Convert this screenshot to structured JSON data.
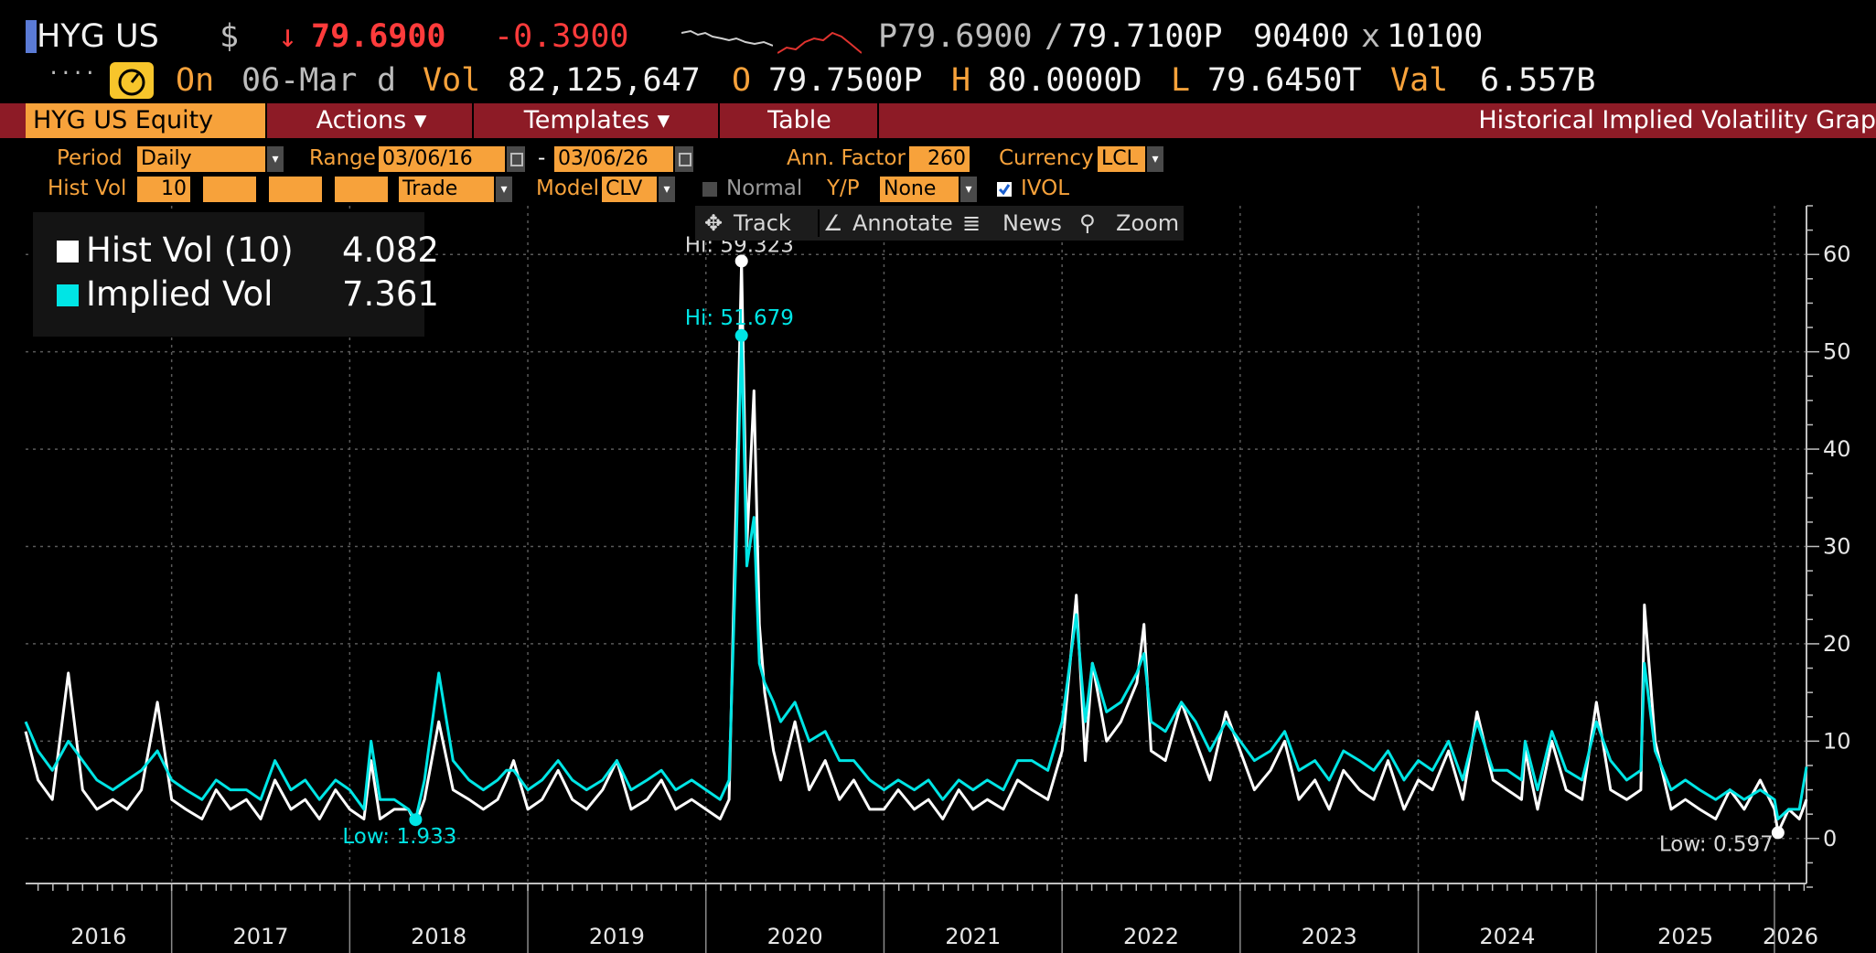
{
  "quote": {
    "ticker": "HYG US",
    "currency_symbol": "$",
    "arrow": "↓",
    "last": "79.6900",
    "change": "-0.3900",
    "bid": "P79.6900",
    "separator": "/",
    "ask": "79.7100P",
    "bid_size": "90400",
    "times": "x",
    "ask_size": "10100",
    "dots": "....",
    "on_label": "On",
    "date": "06-Mar",
    "d": "d",
    "vol_label": "Vol",
    "volume": "82,125,647",
    "open_label": "O",
    "open": "79.7500P",
    "high_label": "H",
    "high": "80.0000D",
    "low_label": "L",
    "low": "79.6450T",
    "val_label": "Val",
    "value": "6.557B"
  },
  "tabs": {
    "equity": "HYG US Equity",
    "actions": "Actions ▾",
    "templates": "Templates ▾",
    "table": "Table",
    "title": "Historical Implied Volatility Grap"
  },
  "params": {
    "period_label": "Period",
    "period_value": "Daily",
    "range_label": "Range",
    "range_start": "03/06/16",
    "range_dash": "-",
    "range_end": "03/06/26",
    "ann_factor_label": "Ann. Factor",
    "ann_factor_value": "260",
    "currency_label": "Currency",
    "currency_value": "LCL",
    "hist_vol_label": "Hist Vol",
    "hist_vol_value": "10",
    "trade_value": "Trade",
    "model_label": "Model",
    "model_value": "CLV",
    "normal_label": "Normal",
    "yp_label": "Y/P",
    "yp_value": "None",
    "ivol_label": "IVOL"
  },
  "toolbar": {
    "track": "Track",
    "annotate": "Annotate",
    "news": "News",
    "zoom": "Zoom"
  },
  "legend": {
    "hist_label": "Hist Vol (10)",
    "hist_value": "4.082",
    "implied_label": "Implied Vol",
    "implied_value": "7.361"
  },
  "colors": {
    "hist": "#ffffff",
    "implied": "#00e5e5",
    "accent": "#f7a23b",
    "tabbar": "#8d1b26"
  },
  "chart_data": {
    "type": "line",
    "title": "",
    "xlabel": "",
    "ylabel": "",
    "x_range": [
      2016.18,
      2026.18
    ],
    "ylim": [
      -5,
      65
    ],
    "y_ticks": [
      0,
      10,
      20,
      30,
      40,
      50,
      60
    ],
    "x_tick_labels": [
      "2016",
      "2017",
      "2018",
      "2019",
      "2020",
      "2021",
      "2022",
      "2023",
      "2024",
      "2025",
      "2026"
    ],
    "grid": true,
    "legend_position": "top-left",
    "annotations": [
      {
        "label": "Hi: 59.323",
        "x": 2020.2,
        "y": 59.323,
        "series": "hist"
      },
      {
        "label": "Hi: 51.679",
        "x": 2020.2,
        "y": 51.679,
        "series": "implied"
      },
      {
        "label": "Low: 1.933",
        "x": 2018.37,
        "y": 1.933,
        "series": "implied"
      },
      {
        "label": "Low: 0.597",
        "x": 2026.02,
        "y": 0.597,
        "series": "hist"
      }
    ],
    "series": [
      {
        "name": "Hist Vol (10)",
        "color": "#ffffff",
        "x": [
          2016.18,
          2016.25,
          2016.33,
          2016.42,
          2016.5,
          2016.58,
          2016.67,
          2016.75,
          2016.83,
          2016.92,
          2017.0,
          2017.08,
          2017.17,
          2017.25,
          2017.33,
          2017.42,
          2017.5,
          2017.58,
          2017.67,
          2017.75,
          2017.83,
          2017.92,
          2018.0,
          2018.08,
          2018.12,
          2018.17,
          2018.25,
          2018.33,
          2018.37,
          2018.42,
          2018.5,
          2018.58,
          2018.67,
          2018.75,
          2018.83,
          2018.88,
          2018.92,
          2019.0,
          2019.08,
          2019.17,
          2019.25,
          2019.33,
          2019.42,
          2019.5,
          2019.58,
          2019.67,
          2019.75,
          2019.83,
          2019.92,
          2020.0,
          2020.08,
          2020.13,
          2020.17,
          2020.2,
          2020.23,
          2020.27,
          2020.3,
          2020.33,
          2020.38,
          2020.42,
          2020.5,
          2020.58,
          2020.67,
          2020.75,
          2020.83,
          2020.92,
          2021.0,
          2021.08,
          2021.17,
          2021.25,
          2021.33,
          2021.42,
          2021.5,
          2021.58,
          2021.67,
          2021.75,
          2021.83,
          2021.92,
          2022.0,
          2022.08,
          2022.13,
          2022.17,
          2022.25,
          2022.33,
          2022.42,
          2022.46,
          2022.5,
          2022.58,
          2022.67,
          2022.75,
          2022.83,
          2022.92,
          2023.0,
          2023.08,
          2023.17,
          2023.25,
          2023.33,
          2023.42,
          2023.5,
          2023.58,
          2023.67,
          2023.75,
          2023.83,
          2023.92,
          2024.0,
          2024.08,
          2024.17,
          2024.25,
          2024.33,
          2024.42,
          2024.5,
          2024.58,
          2024.6,
          2024.67,
          2024.75,
          2024.83,
          2024.92,
          2025.0,
          2025.08,
          2025.17,
          2025.25,
          2025.27,
          2025.33,
          2025.42,
          2025.5,
          2025.58,
          2025.67,
          2025.75,
          2025.83,
          2025.92,
          2026.0,
          2026.02,
          2026.08,
          2026.14,
          2026.18
        ],
        "y": [
          11,
          6,
          4,
          17,
          5,
          3,
          4,
          3,
          5,
          14,
          4,
          3,
          2,
          5,
          3,
          4,
          2,
          6,
          3,
          4,
          2,
          5,
          3,
          2,
          8,
          2,
          3,
          3,
          1.5,
          4,
          12,
          5,
          4,
          3,
          4,
          6,
          8,
          3,
          4,
          7,
          4,
          3,
          5,
          8,
          3,
          4,
          6,
          3,
          4,
          3,
          2,
          4,
          35,
          59.3,
          30,
          46,
          22,
          15,
          9,
          6,
          12,
          5,
          8,
          4,
          6,
          3,
          3,
          5,
          3,
          4,
          2,
          5,
          3,
          4,
          3,
          6,
          5,
          4,
          9,
          25,
          8,
          18,
          10,
          12,
          16,
          22,
          9,
          8,
          14,
          10,
          6,
          13,
          9,
          5,
          7,
          10,
          4,
          6,
          3,
          7,
          5,
          4,
          8,
          3,
          6,
          5,
          9,
          4,
          13,
          6,
          5,
          4,
          9,
          3,
          10,
          5,
          4,
          14,
          5,
          4,
          5,
          24,
          10,
          3,
          4,
          3,
          2,
          5,
          3,
          6,
          3,
          0.6,
          3,
          2,
          4
        ]
      },
      {
        "name": "Implied Vol",
        "color": "#00e5e5",
        "x": [
          2016.18,
          2016.25,
          2016.33,
          2016.42,
          2016.5,
          2016.58,
          2016.67,
          2016.75,
          2016.83,
          2016.92,
          2017.0,
          2017.08,
          2017.17,
          2017.25,
          2017.33,
          2017.42,
          2017.5,
          2017.58,
          2017.67,
          2017.75,
          2017.83,
          2017.92,
          2018.0,
          2018.08,
          2018.12,
          2018.17,
          2018.25,
          2018.33,
          2018.37,
          2018.42,
          2018.5,
          2018.58,
          2018.67,
          2018.75,
          2018.83,
          2018.88,
          2018.92,
          2019.0,
          2019.08,
          2019.17,
          2019.25,
          2019.33,
          2019.42,
          2019.5,
          2019.58,
          2019.67,
          2019.75,
          2019.83,
          2019.92,
          2020.0,
          2020.08,
          2020.13,
          2020.17,
          2020.2,
          2020.23,
          2020.27,
          2020.3,
          2020.33,
          2020.38,
          2020.42,
          2020.5,
          2020.58,
          2020.67,
          2020.75,
          2020.83,
          2020.92,
          2021.0,
          2021.08,
          2021.17,
          2021.25,
          2021.33,
          2021.42,
          2021.5,
          2021.58,
          2021.67,
          2021.75,
          2021.83,
          2021.92,
          2022.0,
          2022.08,
          2022.13,
          2022.17,
          2022.25,
          2022.33,
          2022.42,
          2022.46,
          2022.5,
          2022.58,
          2022.67,
          2022.75,
          2022.83,
          2022.92,
          2023.0,
          2023.08,
          2023.17,
          2023.25,
          2023.33,
          2023.42,
          2023.5,
          2023.58,
          2023.67,
          2023.75,
          2023.83,
          2023.92,
          2024.0,
          2024.08,
          2024.17,
          2024.25,
          2024.33,
          2024.42,
          2024.5,
          2024.58,
          2024.6,
          2024.67,
          2024.75,
          2024.83,
          2024.92,
          2025.0,
          2025.08,
          2025.17,
          2025.25,
          2025.27,
          2025.33,
          2025.42,
          2025.5,
          2025.58,
          2025.67,
          2025.75,
          2025.83,
          2025.92,
          2026.0,
          2026.02,
          2026.08,
          2026.14,
          2026.18
        ],
        "y": [
          12,
          9,
          7,
          10,
          8,
          6,
          5,
          6,
          7,
          9,
          6,
          5,
          4,
          6,
          5,
          5,
          4,
          8,
          5,
          6,
          4,
          6,
          5,
          3,
          10,
          4,
          4,
          3,
          1.933,
          6,
          17,
          8,
          6,
          5,
          6,
          7,
          7,
          5,
          6,
          8,
          6,
          5,
          6,
          8,
          5,
          6,
          7,
          5,
          6,
          5,
          4,
          6,
          30,
          51.7,
          28,
          33,
          18,
          16,
          14,
          12,
          14,
          10,
          11,
          8,
          8,
          6,
          5,
          6,
          5,
          6,
          4,
          6,
          5,
          6,
          5,
          8,
          8,
          7,
          12,
          23,
          12,
          18,
          13,
          14,
          17,
          19,
          12,
          11,
          14,
          12,
          9,
          12,
          10,
          8,
          9,
          11,
          7,
          8,
          6,
          9,
          8,
          7,
          9,
          6,
          8,
          7,
          10,
          6,
          12,
          7,
          7,
          6,
          10,
          5,
          11,
          7,
          6,
          12,
          8,
          6,
          7,
          18,
          9,
          5,
          6,
          5,
          4,
          5,
          4,
          5,
          4,
          2,
          3,
          3,
          7.361
        ]
      }
    ]
  }
}
